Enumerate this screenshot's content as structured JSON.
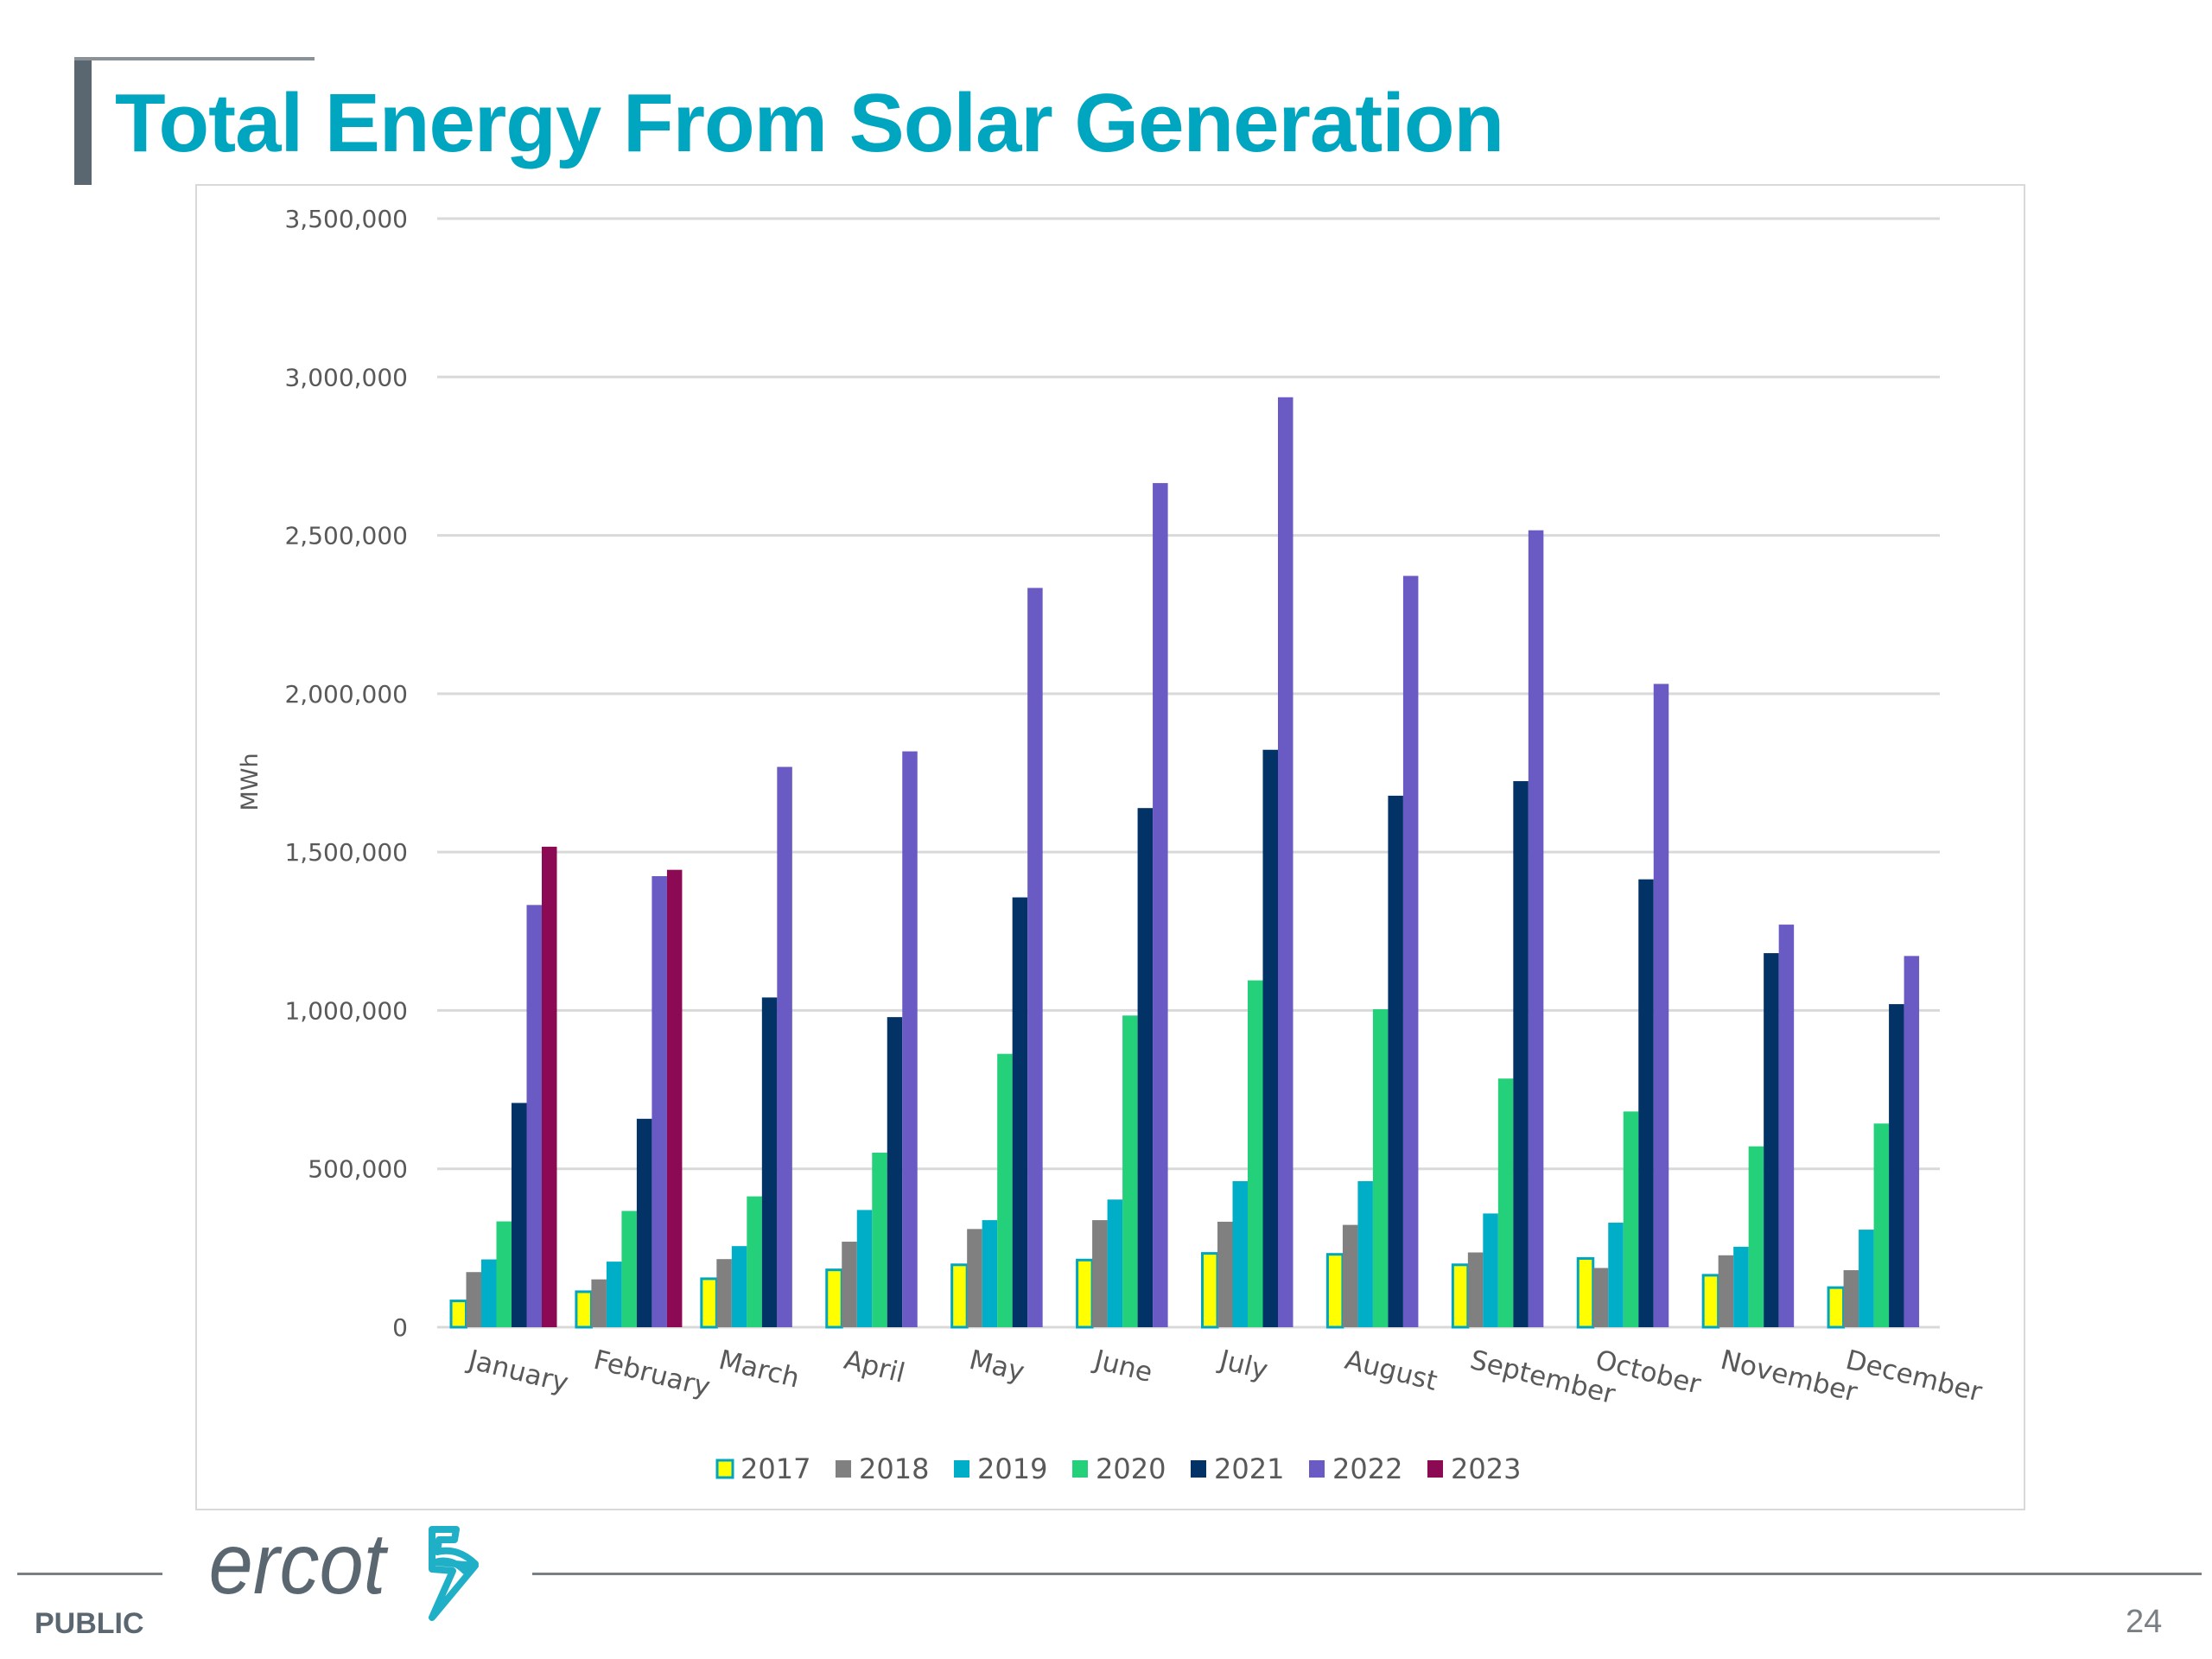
{
  "slide": {
    "title": "Total Energy From Solar Generation",
    "footer_label": "PUBLIC",
    "page_number": "24",
    "logo_text": "ercot",
    "colors": {
      "title": "#00a5c0",
      "logo_text": "#5b6770",
      "logo_mark": "#1fb0c8"
    }
  },
  "chart_data": {
    "type": "bar",
    "title": "",
    "xlabel": "",
    "ylabel": "MWh",
    "ylim": [
      0,
      3500000
    ],
    "yticks": [
      0,
      500000,
      1000000,
      1500000,
      2000000,
      2500000,
      3000000,
      3500000
    ],
    "ytick_labels": [
      "0",
      "500,000",
      "1,000,000",
      "1,500,000",
      "2,000,000",
      "2,500,000",
      "3,000,000",
      "3,500,000"
    ],
    "grid": true,
    "legend_position": "bottom",
    "categories": [
      "January",
      "February",
      "March",
      "April",
      "May",
      "June",
      "July",
      "August",
      "September",
      "October",
      "November",
      "December"
    ],
    "series": [
      {
        "name": "2017",
        "color": "#ffff00",
        "border": "#00a5c0",
        "values": [
          83000,
          112000,
          153000,
          181000,
          197000,
          212000,
          233000,
          230000,
          197000,
          217000,
          164000,
          125000
        ]
      },
      {
        "name": "2018",
        "color": "#808080",
        "values": [
          174000,
          151000,
          215000,
          270000,
          310000,
          338000,
          333000,
          323000,
          236000,
          187000,
          227000,
          180000
        ]
      },
      {
        "name": "2019",
        "color": "#00aec8",
        "values": [
          214000,
          207000,
          256000,
          370000,
          338000,
          403000,
          461000,
          461000,
          359000,
          330000,
          254000,
          308000
        ]
      },
      {
        "name": "2020",
        "color": "#24d07a",
        "values": [
          334000,
          367000,
          413000,
          551000,
          863000,
          984000,
          1095000,
          1004000,
          785000,
          681000,
          571000,
          643000
        ]
      },
      {
        "name": "2021",
        "color": "#033366",
        "values": [
          708000,
          658000,
          1041000,
          979000,
          1357000,
          1639000,
          1823000,
          1678000,
          1724000,
          1414000,
          1181000,
          1020000
        ]
      },
      {
        "name": "2022",
        "color": "#6a5ac4",
        "values": [
          1333000,
          1424000,
          1769000,
          1818000,
          2334000,
          2665000,
          2936000,
          2372000,
          2516000,
          2031000,
          1271000,
          1172000
        ]
      },
      {
        "name": "2023",
        "color": "#8c0a54",
        "values": [
          1517000,
          1444000,
          null,
          null,
          null,
          null,
          null,
          null,
          null,
          null,
          null,
          null
        ]
      }
    ]
  }
}
